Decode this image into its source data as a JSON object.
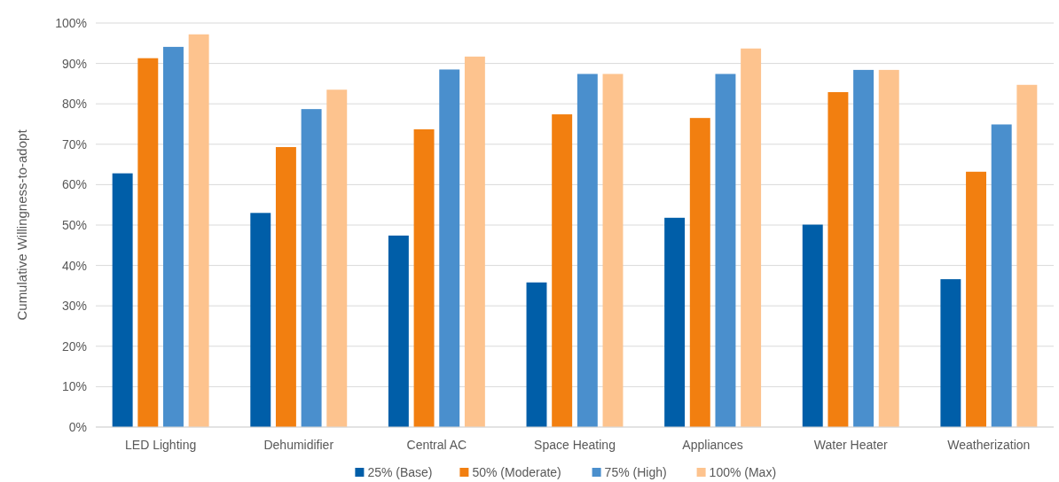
{
  "chart_data": {
    "type": "bar",
    "ylabel": "Cumulative Willingness-to-adopt",
    "categories": [
      "LED Lighting",
      "Dehumidifier",
      "Central AC",
      "Space Heating",
      "Appliances",
      "Water Heater",
      "Weatherization"
    ],
    "series": [
      {
        "name": "25% (Base)",
        "color": "#005ea8",
        "values": [
          62.8,
          53,
          47.4,
          35.8,
          51.8,
          50.1,
          36.6
        ]
      },
      {
        "name": "50% (Moderate)",
        "color": "#f27f10",
        "values": [
          91.3,
          69.3,
          73.7,
          77.4,
          76.5,
          82.9,
          63.2
        ]
      },
      {
        "name": "75% (High)",
        "color": "#4a8fcd",
        "values": [
          94.1,
          78.7,
          88.5,
          87.4,
          87.4,
          88.4,
          74.9
        ]
      },
      {
        "name": "100% (Max)",
        "color": "#fdc38e",
        "values": [
          97.2,
          83.5,
          91.7,
          87.4,
          93.7,
          88.4,
          84.7
        ]
      }
    ],
    "ylim": [
      0,
      100
    ],
    "yticks": [
      {
        "value": 0,
        "label": "0%"
      },
      {
        "value": 10,
        "label": "10%"
      },
      {
        "value": 20,
        "label": "20%"
      },
      {
        "value": 30,
        "label": "30%"
      },
      {
        "value": 40,
        "label": "40%"
      },
      {
        "value": 50,
        "label": "50%"
      },
      {
        "value": 60,
        "label": "60%"
      },
      {
        "value": 70,
        "label": "70%"
      },
      {
        "value": 80,
        "label": "80%"
      },
      {
        "value": 90,
        "label": "90%"
      },
      {
        "value": 100,
        "label": "100%"
      }
    ],
    "grid": "y",
    "legend": "bottom"
  }
}
